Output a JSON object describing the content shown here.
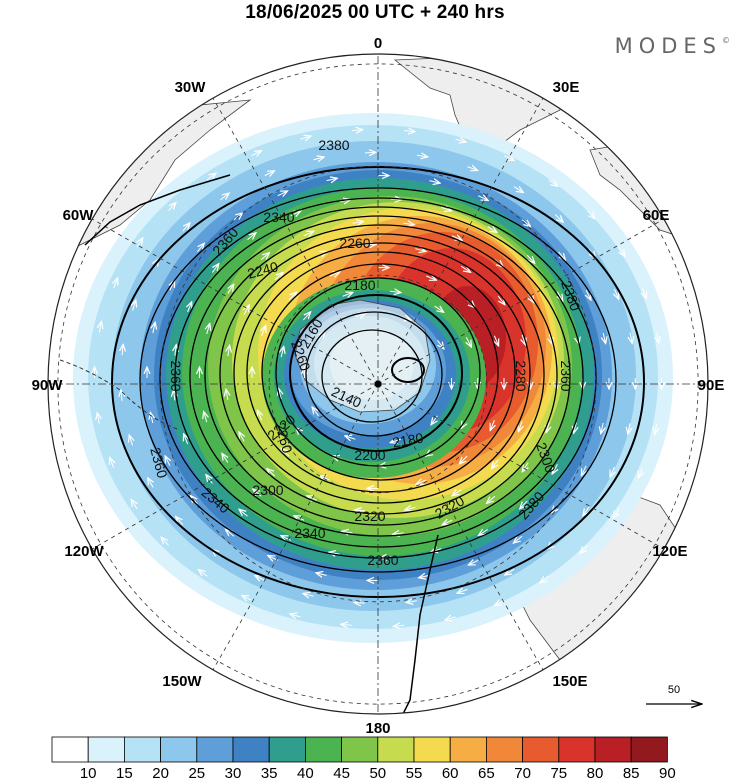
{
  "title": "18/06/2025  00 UTC  + 240 hrs",
  "brand": "MODES",
  "brand_mark": "©",
  "longitude_labels": [
    "0",
    "30E",
    "60E",
    "90E",
    "120E",
    "150E",
    "180",
    "150W",
    "120W",
    "90W",
    "60W",
    "30W"
  ],
  "contour_labels": [
    "2140",
    "2160",
    "2180",
    "2200",
    "2220",
    "2240",
    "2260",
    "2280",
    "2300",
    "2320",
    "2340",
    "2360",
    "2380"
  ],
  "reference_vector": "50",
  "colorbar": {
    "ticks": [
      "10",
      "15",
      "20",
      "25",
      "30",
      "35",
      "40",
      "45",
      "50",
      "55",
      "60",
      "65",
      "70",
      "75",
      "80",
      "85",
      "90"
    ],
    "colors": [
      "#ffffff",
      "#d9f2fb",
      "#b6e2f6",
      "#8ec7ec",
      "#5f9fd9",
      "#3f82c4",
      "#2f9e8d",
      "#4bb350",
      "#7fc54a",
      "#c6dc4e",
      "#f4da4f",
      "#f6ad44",
      "#f18738",
      "#e75b2f",
      "#d9342c",
      "#b92025",
      "#921a1e"
    ]
  },
  "chart_data": {
    "type": "polar-map",
    "projection": "South polar stereographic",
    "variable": "geopotential height contours with wind speed shading and wind vectors",
    "contour_values": [
      2140,
      2160,
      2180,
      2200,
      2220,
      2240,
      2260,
      2280,
      2300,
      2320,
      2340,
      2360,
      2380
    ],
    "wind_speed_bins": [
      10,
      15,
      20,
      25,
      30,
      35,
      40,
      45,
      50,
      55,
      60,
      65,
      70,
      75,
      80,
      85,
      90
    ],
    "vector_reference": 50
  }
}
